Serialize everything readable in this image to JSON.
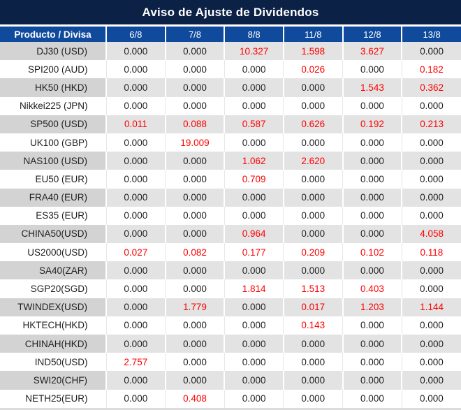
{
  "title": "Aviso de Ajuste de Dividendos",
  "table": {
    "product_header": "Producto / Divisa",
    "date_headers": [
      "6/8",
      "7/8",
      "8/8",
      "11/8",
      "12/8",
      "13/8"
    ],
    "rows": [
      {
        "product": "DJ30 (USD)",
        "values": [
          "0.000",
          "0.000",
          "10.327",
          "1.598",
          "3.627",
          "0.000"
        ],
        "red_flags": [
          false,
          false,
          true,
          true,
          true,
          false
        ]
      },
      {
        "product": "SPI200 (AUD)",
        "values": [
          "0.000",
          "0.000",
          "0.000",
          "0.026",
          "0.000",
          "0.182"
        ],
        "red_flags": [
          false,
          false,
          false,
          true,
          false,
          true
        ]
      },
      {
        "product": "HK50 (HKD)",
        "values": [
          "0.000",
          "0.000",
          "0.000",
          "0.000",
          "1.543",
          "0.362"
        ],
        "red_flags": [
          false,
          false,
          false,
          false,
          true,
          true
        ]
      },
      {
        "product": "Nikkei225 (JPN)",
        "values": [
          "0.000",
          "0.000",
          "0.000",
          "0.000",
          "0.000",
          "0.000"
        ],
        "red_flags": [
          false,
          false,
          false,
          false,
          false,
          false
        ]
      },
      {
        "product": "SP500 (USD)",
        "values": [
          "0.011",
          "0.088",
          "0.587",
          "0.626",
          "0.192",
          "0.213"
        ],
        "red_flags": [
          true,
          true,
          true,
          true,
          true,
          true
        ]
      },
      {
        "product": "UK100 (GBP)",
        "values": [
          "0.000",
          "19.009",
          "0.000",
          "0.000",
          "0.000",
          "0.000"
        ],
        "red_flags": [
          false,
          true,
          false,
          false,
          false,
          false
        ]
      },
      {
        "product": "NAS100 (USD)",
        "values": [
          "0.000",
          "0.000",
          "1.062",
          "2.620",
          "0.000",
          "0.000"
        ],
        "red_flags": [
          false,
          false,
          true,
          true,
          false,
          false
        ]
      },
      {
        "product": "EU50 (EUR)",
        "values": [
          "0.000",
          "0.000",
          "0.709",
          "0.000",
          "0.000",
          "0.000"
        ],
        "red_flags": [
          false,
          false,
          true,
          false,
          false,
          false
        ]
      },
      {
        "product": "FRA40 (EUR)",
        "values": [
          "0.000",
          "0.000",
          "0.000",
          "0.000",
          "0.000",
          "0.000"
        ],
        "red_flags": [
          false,
          false,
          false,
          false,
          false,
          false
        ]
      },
      {
        "product": "ES35 (EUR)",
        "values": [
          "0.000",
          "0.000",
          "0.000",
          "0.000",
          "0.000",
          "0.000"
        ],
        "red_flags": [
          false,
          false,
          false,
          false,
          false,
          false
        ]
      },
      {
        "product": "CHINA50(USD)",
        "values": [
          "0.000",
          "0.000",
          "0.964",
          "0.000",
          "0.000",
          "4.058"
        ],
        "red_flags": [
          false,
          false,
          true,
          false,
          false,
          true
        ]
      },
      {
        "product": "US2000(USD)",
        "values": [
          "0.027",
          "0.082",
          "0.177",
          "0.209",
          "0.102",
          "0.118"
        ],
        "red_flags": [
          true,
          true,
          true,
          true,
          true,
          true
        ]
      },
      {
        "product": "SA40(ZAR)",
        "values": [
          "0.000",
          "0.000",
          "0.000",
          "0.000",
          "0.000",
          "0.000"
        ],
        "red_flags": [
          false,
          false,
          false,
          false,
          false,
          false
        ]
      },
      {
        "product": "SGP20(SGD)",
        "values": [
          "0.000",
          "0.000",
          "1.814",
          "1.513",
          "0.403",
          "0.000"
        ],
        "red_flags": [
          false,
          false,
          true,
          true,
          true,
          false
        ]
      },
      {
        "product": "TWINDEX(USD)",
        "values": [
          "0.000",
          "1.779",
          "0.000",
          "0.017",
          "1.203",
          "1.144"
        ],
        "red_flags": [
          false,
          true,
          false,
          true,
          true,
          true
        ]
      },
      {
        "product": "HKTECH(HKD)",
        "values": [
          "0.000",
          "0.000",
          "0.000",
          "0.143",
          "0.000",
          "0.000"
        ],
        "red_flags": [
          false,
          false,
          false,
          true,
          false,
          false
        ]
      },
      {
        "product": "CHINAH(HKD)",
        "values": [
          "0.000",
          "0.000",
          "0.000",
          "0.000",
          "0.000",
          "0.000"
        ],
        "red_flags": [
          false,
          false,
          false,
          false,
          false,
          false
        ]
      },
      {
        "product": "IND50(USD)",
        "values": [
          "2.757",
          "0.000",
          "0.000",
          "0.000",
          "0.000",
          "0.000"
        ],
        "red_flags": [
          true,
          false,
          false,
          false,
          false,
          false
        ]
      },
      {
        "product": "SWI20(CHF)",
        "values": [
          "0.000",
          "0.000",
          "0.000",
          "0.000",
          "0.000",
          "0.000"
        ],
        "red_flags": [
          false,
          false,
          false,
          false,
          false,
          false
        ]
      },
      {
        "product": "NETH25(EUR)",
        "values": [
          "0.000",
          "0.408",
          "0.000",
          "0.000",
          "0.000",
          "0.000"
        ],
        "red_flags": [
          false,
          true,
          false,
          false,
          false,
          false
        ]
      }
    ]
  },
  "colors": {
    "title_bg": "#0c2146",
    "header_bg": "#0f4a9d",
    "row_alt_bg": "#e3e3e3",
    "row_alt_product_bg": "#d3d3d3",
    "red_value": "#fe0000",
    "text": "#1f1f1f"
  }
}
